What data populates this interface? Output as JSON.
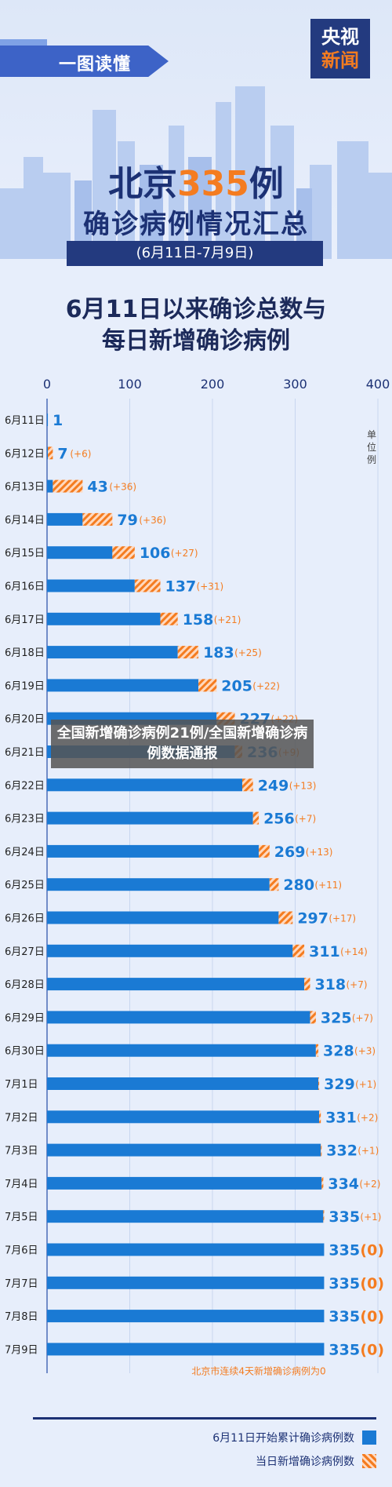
{
  "header": {
    "banner": "一图读懂",
    "logo_line1": "央视",
    "logo_line2": "新闻",
    "title_prefix": "北京",
    "title_number": "335",
    "title_suffix": "例",
    "title_line2": "确诊病例情况汇总",
    "date_range": "(6月11日-7月9日)",
    "subtitle_line1": "6月11日以来确诊总数与",
    "subtitle_line2": "每日新增确诊病例"
  },
  "overlay_caption": "全国新增确诊病例21例/全国新增确诊病例数据通报",
  "chart_data": {
    "type": "bar",
    "orientation": "horizontal",
    "stacked": true,
    "xlim": [
      0,
      400
    ],
    "xticks": [
      0,
      100,
      200,
      300,
      400
    ],
    "unit_label": "单位例",
    "categories": [
      "6月11日",
      "6月12日",
      "6月13日",
      "6月14日",
      "6月15日",
      "6月16日",
      "6月17日",
      "6月18日",
      "6月19日",
      "6月20日",
      "6月21日",
      "6月22日",
      "6月23日",
      "6月24日",
      "6月25日",
      "6月26日",
      "6月27日",
      "6月28日",
      "6月29日",
      "6月30日",
      "7月1日",
      "7月2日",
      "7月3日",
      "7月4日",
      "7月5日",
      "7月6日",
      "7月7日",
      "7月8日",
      "7月9日"
    ],
    "cumulative": [
      1,
      7,
      43,
      79,
      106,
      137,
      158,
      183,
      205,
      227,
      236,
      249,
      256,
      269,
      280,
      297,
      311,
      318,
      325,
      328,
      329,
      331,
      332,
      334,
      335,
      335,
      335,
      335,
      335
    ],
    "daily_new": [
      0,
      6,
      36,
      36,
      27,
      31,
      21,
      25,
      22,
      22,
      9,
      13,
      7,
      13,
      11,
      17,
      14,
      7,
      7,
      3,
      1,
      2,
      1,
      2,
      1,
      0,
      0,
      0,
      0
    ],
    "cumulative_labels": [
      "1",
      "7",
      "43",
      "79",
      "106",
      "137",
      "158",
      "183",
      "205",
      "227",
      "236",
      "249",
      "256",
      "269",
      "280",
      "297",
      "311",
      "318",
      "325",
      "328",
      "329",
      "331",
      "332",
      "334",
      "335",
      "335",
      "335",
      "335",
      "335"
    ],
    "daily_labels": [
      "",
      "(+6)",
      "(+36)",
      "(+36)",
      "(+27)",
      "(+31)",
      "(+21)",
      "(+25)",
      "(+22)",
      "(+22)",
      "(+9)",
      "(+13)",
      "(+7)",
      "(+13)",
      "(+11)",
      "(+17)",
      "(+14)",
      "(+7)",
      "(+7)",
      "(+3)",
      "(+1)",
      "(+2)",
      "(+1)",
      "(+2)",
      "(+1)",
      "(0)",
      "(0)",
      "(0)",
      "(0)"
    ],
    "annotation": "北京市连续4天新增确诊病例为0",
    "legend": [
      "6月11日开始累计确诊病例数",
      "当日新增确诊病例数"
    ],
    "colors": {
      "cumulative": "#1a7ad4",
      "daily": "#f47c20",
      "text_dark": "#1c3174"
    }
  }
}
